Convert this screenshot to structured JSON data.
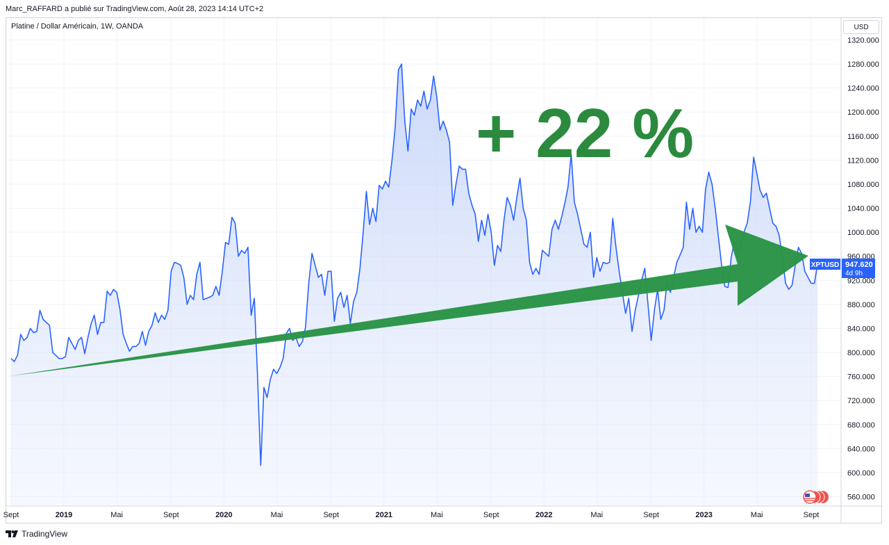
{
  "header": {
    "attribution": "Marc_RAFFARD a publié sur TradingView.com, Août 28, 2023 14:14 UTC+2"
  },
  "legend": {
    "symbol_text": "Platine / Dollar Américain, 1W, OANDA"
  },
  "currency": "USD",
  "price_label": {
    "ticker": "XPTUSD",
    "price": "947.620",
    "countdown": "4d 9h"
  },
  "annotation": {
    "text": "+ 22 %"
  },
  "footer": {
    "brand": "TradingView"
  },
  "colors": {
    "line": "#2962ff",
    "area_top": "#c7d5f8",
    "arrow": "#2b9447",
    "annotation": "#2b8a3e"
  },
  "chart_data": {
    "type": "area",
    "title": "Platine / Dollar Américain, 1W, OANDA",
    "ylim": [
      545,
      1350
    ],
    "y_ticks": [
      "560.000",
      "600.000",
      "640.000",
      "680.000",
      "720.000",
      "760.000",
      "800.000",
      "840.000",
      "880.000",
      "920.000",
      "960.000",
      "1000.000",
      "1040.000",
      "1080.000",
      "1120.000",
      "1160.000",
      "1200.000",
      "1240.000",
      "1280.000",
      "1320.000"
    ],
    "x_ticks": [
      {
        "label": "Sept",
        "year": false,
        "t": 2018.67
      },
      {
        "label": "2019",
        "year": true,
        "t": 2019.0
      },
      {
        "label": "Mai",
        "year": false,
        "t": 2019.33
      },
      {
        "label": "Sept",
        "year": false,
        "t": 2019.67
      },
      {
        "label": "2020",
        "year": true,
        "t": 2020.0
      },
      {
        "label": "Mai",
        "year": false,
        "t": 2020.33
      },
      {
        "label": "Sept",
        "year": false,
        "t": 2020.67
      },
      {
        "label": "2021",
        "year": true,
        "t": 2021.0
      },
      {
        "label": "Mai",
        "year": false,
        "t": 2021.33
      },
      {
        "label": "Sept",
        "year": false,
        "t": 2021.67
      },
      {
        "label": "2022",
        "year": true,
        "t": 2022.0
      },
      {
        "label": "Mai",
        "year": false,
        "t": 2022.33
      },
      {
        "label": "Sept",
        "year": false,
        "t": 2022.67
      },
      {
        "label": "2023",
        "year": true,
        "t": 2023.0
      },
      {
        "label": "Mai",
        "year": false,
        "t": 2023.33
      },
      {
        "label": "Sept",
        "year": false,
        "t": 2023.67
      }
    ],
    "series": [
      {
        "values": [
          [
            2018.67,
            790
          ],
          [
            2018.69,
            785
          ],
          [
            2018.71,
            795
          ],
          [
            2018.73,
            830
          ],
          [
            2018.75,
            820
          ],
          [
            2018.77,
            825
          ],
          [
            2018.79,
            840
          ],
          [
            2018.81,
            833
          ],
          [
            2018.83,
            835
          ],
          [
            2018.85,
            870
          ],
          [
            2018.87,
            855
          ],
          [
            2018.89,
            850
          ],
          [
            2018.91,
            845
          ],
          [
            2018.93,
            800
          ],
          [
            2018.95,
            795
          ],
          [
            2018.97,
            790
          ],
          [
            2018.99,
            790
          ],
          [
            2019.01,
            793
          ],
          [
            2019.03,
            825
          ],
          [
            2019.05,
            815
          ],
          [
            2019.07,
            805
          ],
          [
            2019.09,
            820
          ],
          [
            2019.11,
            825
          ],
          [
            2019.13,
            798
          ],
          [
            2019.15,
            825
          ],
          [
            2019.17,
            848
          ],
          [
            2019.19,
            862
          ],
          [
            2019.21,
            830
          ],
          [
            2019.23,
            850
          ],
          [
            2019.25,
            850
          ],
          [
            2019.27,
            902
          ],
          [
            2019.29,
            895
          ],
          [
            2019.31,
            905
          ],
          [
            2019.33,
            900
          ],
          [
            2019.35,
            872
          ],
          [
            2019.37,
            830
          ],
          [
            2019.39,
            815
          ],
          [
            2019.41,
            802
          ],
          [
            2019.43,
            810
          ],
          [
            2019.45,
            810
          ],
          [
            2019.47,
            815
          ],
          [
            2019.49,
            835
          ],
          [
            2019.51,
            812
          ],
          [
            2019.53,
            835
          ],
          [
            2019.55,
            845
          ],
          [
            2019.57,
            866
          ],
          [
            2019.59,
            850
          ],
          [
            2019.61,
            862
          ],
          [
            2019.63,
            855
          ],
          [
            2019.65,
            870
          ],
          [
            2019.67,
            935
          ],
          [
            2019.69,
            950
          ],
          [
            2019.71,
            948
          ],
          [
            2019.73,
            945
          ],
          [
            2019.75,
            924
          ],
          [
            2019.77,
            880
          ],
          [
            2019.79,
            895
          ],
          [
            2019.81,
            888
          ],
          [
            2019.83,
            930
          ],
          [
            2019.85,
            950
          ],
          [
            2019.87,
            888
          ],
          [
            2019.89,
            890
          ],
          [
            2019.91,
            892
          ],
          [
            2019.93,
            895
          ],
          [
            2019.95,
            910
          ],
          [
            2019.97,
            895
          ],
          [
            2019.99,
            935
          ],
          [
            2020.01,
            983
          ],
          [
            2020.03,
            980
          ],
          [
            2020.05,
            1025
          ],
          [
            2020.07,
            1015
          ],
          [
            2020.09,
            960
          ],
          [
            2020.11,
            970
          ],
          [
            2020.13,
            965
          ],
          [
            2020.15,
            975
          ],
          [
            2020.17,
            862
          ],
          [
            2020.19,
            890
          ],
          [
            2020.21,
            760
          ],
          [
            2020.23,
            612
          ],
          [
            2020.25,
            742
          ],
          [
            2020.27,
            725
          ],
          [
            2020.29,
            755
          ],
          [
            2020.31,
            772
          ],
          [
            2020.33,
            765
          ],
          [
            2020.35,
            775
          ],
          [
            2020.37,
            790
          ],
          [
            2020.39,
            832
          ],
          [
            2020.41,
            840
          ],
          [
            2020.43,
            820
          ],
          [
            2020.45,
            825
          ],
          [
            2020.47,
            810
          ],
          [
            2020.49,
            818
          ],
          [
            2020.51,
            842
          ],
          [
            2020.53,
            915
          ],
          [
            2020.55,
            965
          ],
          [
            2020.57,
            945
          ],
          [
            2020.59,
            925
          ],
          [
            2020.61,
            930
          ],
          [
            2020.63,
            895
          ],
          [
            2020.65,
            935
          ],
          [
            2020.67,
            935
          ],
          [
            2020.69,
            852
          ],
          [
            2020.71,
            890
          ],
          [
            2020.73,
            900
          ],
          [
            2020.75,
            875
          ],
          [
            2020.77,
            895
          ],
          [
            2020.79,
            848
          ],
          [
            2020.81,
            885
          ],
          [
            2020.83,
            900
          ],
          [
            2020.85,
            940
          ],
          [
            2020.87,
            1000
          ],
          [
            2020.89,
            1068
          ],
          [
            2020.91,
            1013
          ],
          [
            2020.93,
            1040
          ],
          [
            2020.95,
            1018
          ],
          [
            2020.97,
            1078
          ],
          [
            2020.99,
            1072
          ],
          [
            2021.01,
            1085
          ],
          [
            2021.03,
            1075
          ],
          [
            2021.05,
            1120
          ],
          [
            2021.07,
            1175
          ],
          [
            2021.09,
            1270
          ],
          [
            2021.11,
            1280
          ],
          [
            2021.13,
            1185
          ],
          [
            2021.15,
            1135
          ],
          [
            2021.17,
            1205
          ],
          [
            2021.19,
            1195
          ],
          [
            2021.21,
            1220
          ],
          [
            2021.23,
            1210
          ],
          [
            2021.25,
            1235
          ],
          [
            2021.27,
            1205
          ],
          [
            2021.29,
            1220
          ],
          [
            2021.31,
            1260
          ],
          [
            2021.33,
            1225
          ],
          [
            2021.35,
            1170
          ],
          [
            2021.37,
            1185
          ],
          [
            2021.39,
            1170
          ],
          [
            2021.41,
            1150
          ],
          [
            2021.43,
            1045
          ],
          [
            2021.45,
            1080
          ],
          [
            2021.47,
            1110
          ],
          [
            2021.49,
            1105
          ],
          [
            2021.51,
            1105
          ],
          [
            2021.53,
            1065
          ],
          [
            2021.55,
            1045
          ],
          [
            2021.57,
            1030
          ],
          [
            2021.59,
            985
          ],
          [
            2021.61,
            1020
          ],
          [
            2021.63,
            995
          ],
          [
            2021.65,
            1030
          ],
          [
            2021.67,
            1000
          ],
          [
            2021.69,
            945
          ],
          [
            2021.71,
            978
          ],
          [
            2021.73,
            968
          ],
          [
            2021.75,
            1020
          ],
          [
            2021.77,
            1058
          ],
          [
            2021.79,
            1045
          ],
          [
            2021.81,
            1020
          ],
          [
            2021.83,
            1058
          ],
          [
            2021.85,
            1090
          ],
          [
            2021.87,
            1040
          ],
          [
            2021.89,
            1020
          ],
          [
            2021.91,
            950
          ],
          [
            2021.93,
            930
          ],
          [
            2021.95,
            940
          ],
          [
            2021.97,
            930
          ],
          [
            2021.99,
            970
          ],
          [
            2022.01,
            965
          ],
          [
            2022.03,
            960
          ],
          [
            2022.05,
            1005
          ],
          [
            2022.07,
            1020
          ],
          [
            2022.09,
            1005
          ],
          [
            2022.11,
            1025
          ],
          [
            2022.13,
            1048
          ],
          [
            2022.15,
            1075
          ],
          [
            2022.17,
            1130
          ],
          [
            2022.19,
            1050
          ],
          [
            2022.21,
            1030
          ],
          [
            2022.23,
            1005
          ],
          [
            2022.25,
            980
          ],
          [
            2022.27,
            975
          ],
          [
            2022.29,
            1000
          ],
          [
            2022.31,
            925
          ],
          [
            2022.33,
            958
          ],
          [
            2022.35,
            935
          ],
          [
            2022.37,
            950
          ],
          [
            2022.39,
            948
          ],
          [
            2022.41,
            950
          ],
          [
            2022.43,
            1023
          ],
          [
            2022.45,
            975
          ],
          [
            2022.47,
            935
          ],
          [
            2022.49,
            900
          ],
          [
            2022.51,
            865
          ],
          [
            2022.53,
            890
          ],
          [
            2022.55,
            835
          ],
          [
            2022.57,
            870
          ],
          [
            2022.59,
            895
          ],
          [
            2022.61,
            920
          ],
          [
            2022.63,
            940
          ],
          [
            2022.65,
            880
          ],
          [
            2022.67,
            820
          ],
          [
            2022.69,
            870
          ],
          [
            2022.71,
            905
          ],
          [
            2022.73,
            855
          ],
          [
            2022.75,
            870
          ],
          [
            2022.77,
            918
          ],
          [
            2022.79,
            900
          ],
          [
            2022.81,
            925
          ],
          [
            2022.83,
            950
          ],
          [
            2022.85,
            962
          ],
          [
            2022.87,
            975
          ],
          [
            2022.89,
            1050
          ],
          [
            2022.91,
            1005
          ],
          [
            2022.93,
            1040
          ],
          [
            2022.95,
            1000
          ],
          [
            2022.97,
            1010
          ],
          [
            2022.99,
            1000
          ],
          [
            2023.01,
            1072
          ],
          [
            2023.03,
            1100
          ],
          [
            2023.05,
            1080
          ],
          [
            2023.07,
            1040
          ],
          [
            2023.09,
            992
          ],
          [
            2023.11,
            945
          ],
          [
            2023.13,
            910
          ],
          [
            2023.15,
            908
          ],
          [
            2023.17,
            958
          ],
          [
            2023.19,
            985
          ],
          [
            2023.21,
            965
          ],
          [
            2023.23,
            980
          ],
          [
            2023.25,
            1000
          ],
          [
            2023.27,
            1015
          ],
          [
            2023.29,
            1050
          ],
          [
            2023.31,
            1125
          ],
          [
            2023.33,
            1098
          ],
          [
            2023.35,
            1070
          ],
          [
            2023.37,
            1058
          ],
          [
            2023.39,
            1065
          ],
          [
            2023.41,
            1040
          ],
          [
            2023.43,
            1015
          ],
          [
            2023.45,
            1010
          ],
          [
            2023.47,
            995
          ],
          [
            2023.49,
            958
          ],
          [
            2023.51,
            915
          ],
          [
            2023.53,
            905
          ],
          [
            2023.55,
            912
          ],
          [
            2023.57,
            945
          ],
          [
            2023.59,
            975
          ],
          [
            2023.61,
            965
          ],
          [
            2023.63,
            935
          ],
          [
            2023.65,
            925
          ],
          [
            2023.67,
            915
          ],
          [
            2023.69,
            915
          ],
          [
            2023.71,
            948
          ]
        ]
      }
    ]
  }
}
